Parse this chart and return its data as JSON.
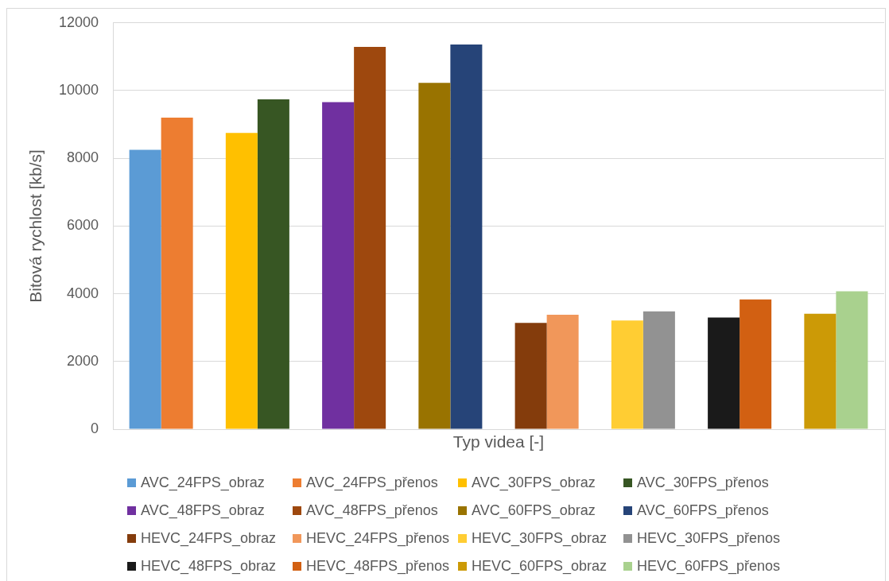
{
  "chart_data": {
    "type": "bar",
    "xlabel": "Typ videa [-]",
    "ylabel": "Bitová rychlost [kb/s]",
    "categories": [
      null,
      null,
      null,
      null,
      null,
      null,
      null,
      null
    ],
    "series": [
      {
        "name": "AVC_24FPS_obraz",
        "color": "#5b9bd5",
        "values": [
          8250,
          null,
          null,
          null,
          null,
          null,
          null,
          null
        ]
      },
      {
        "name": "AVC_24FPS_přenos",
        "color": "#ed7d31",
        "values": [
          9200,
          null,
          null,
          null,
          null,
          null,
          null,
          null
        ]
      },
      {
        "name": "AVC_30FPS_obraz",
        "color": "#ffc000",
        "values": [
          null,
          8750,
          null,
          null,
          null,
          null,
          null,
          null
        ]
      },
      {
        "name": "AVC_30FPS_přenos",
        "color": "#375623",
        "values": [
          null,
          9740,
          null,
          null,
          null,
          null,
          null,
          null
        ]
      },
      {
        "name": "AVC_48FPS_obraz",
        "color": "#7030a0",
        "values": [
          null,
          null,
          9660,
          null,
          null,
          null,
          null,
          null
        ]
      },
      {
        "name": "AVC_48FPS_přenos",
        "color": "#9e480e",
        "values": [
          null,
          null,
          11290,
          null,
          null,
          null,
          null,
          null
        ]
      },
      {
        "name": "AVC_60FPS_obraz",
        "color": "#997300",
        "values": [
          null,
          null,
          null,
          10230,
          null,
          null,
          null,
          null
        ]
      },
      {
        "name": "AVC_60FPS_přenos",
        "color": "#264478",
        "values": [
          null,
          null,
          null,
          11360,
          null,
          null,
          null,
          null
        ]
      },
      {
        "name": "HEVC_24FPS_obraz",
        "color": "#843c0c",
        "values": [
          null,
          null,
          null,
          null,
          3140,
          null,
          null,
          null
        ]
      },
      {
        "name": "HEVC_24FPS_přenos",
        "color": "#f1975a",
        "values": [
          null,
          null,
          null,
          null,
          3380,
          null,
          null,
          null
        ]
      },
      {
        "name": "HEVC_30FPS_obraz",
        "color": "#ffcd33",
        "values": [
          null,
          null,
          null,
          null,
          null,
          3210,
          null,
          null
        ]
      },
      {
        "name": "HEVC_30FPS_přenos",
        "color": "#929292",
        "values": [
          null,
          null,
          null,
          null,
          null,
          3480,
          null,
          null
        ]
      },
      {
        "name": "HEVC_48FPS_obraz",
        "color": "#1a1a1a",
        "values": [
          null,
          null,
          null,
          null,
          null,
          null,
          3300,
          null
        ]
      },
      {
        "name": "HEVC_48FPS_přenos",
        "color": "#d26012",
        "values": [
          null,
          null,
          null,
          null,
          null,
          null,
          3830,
          null
        ]
      },
      {
        "name": "HEVC_60FPS_obraz",
        "color": "#cc9a06",
        "values": [
          null,
          null,
          null,
          null,
          null,
          null,
          null,
          3410
        ]
      },
      {
        "name": "HEVC_60FPS_přenos",
        "color": "#a9d18e",
        "values": [
          null,
          null,
          null,
          null,
          null,
          null,
          null,
          4070
        ]
      }
    ],
    "ylim": [
      0,
      12000
    ],
    "yticks": [
      0,
      2000,
      4000,
      6000,
      8000,
      10000,
      12000
    ],
    "grid": "y",
    "legend": "bottom",
    "tick_labels": "y"
  }
}
